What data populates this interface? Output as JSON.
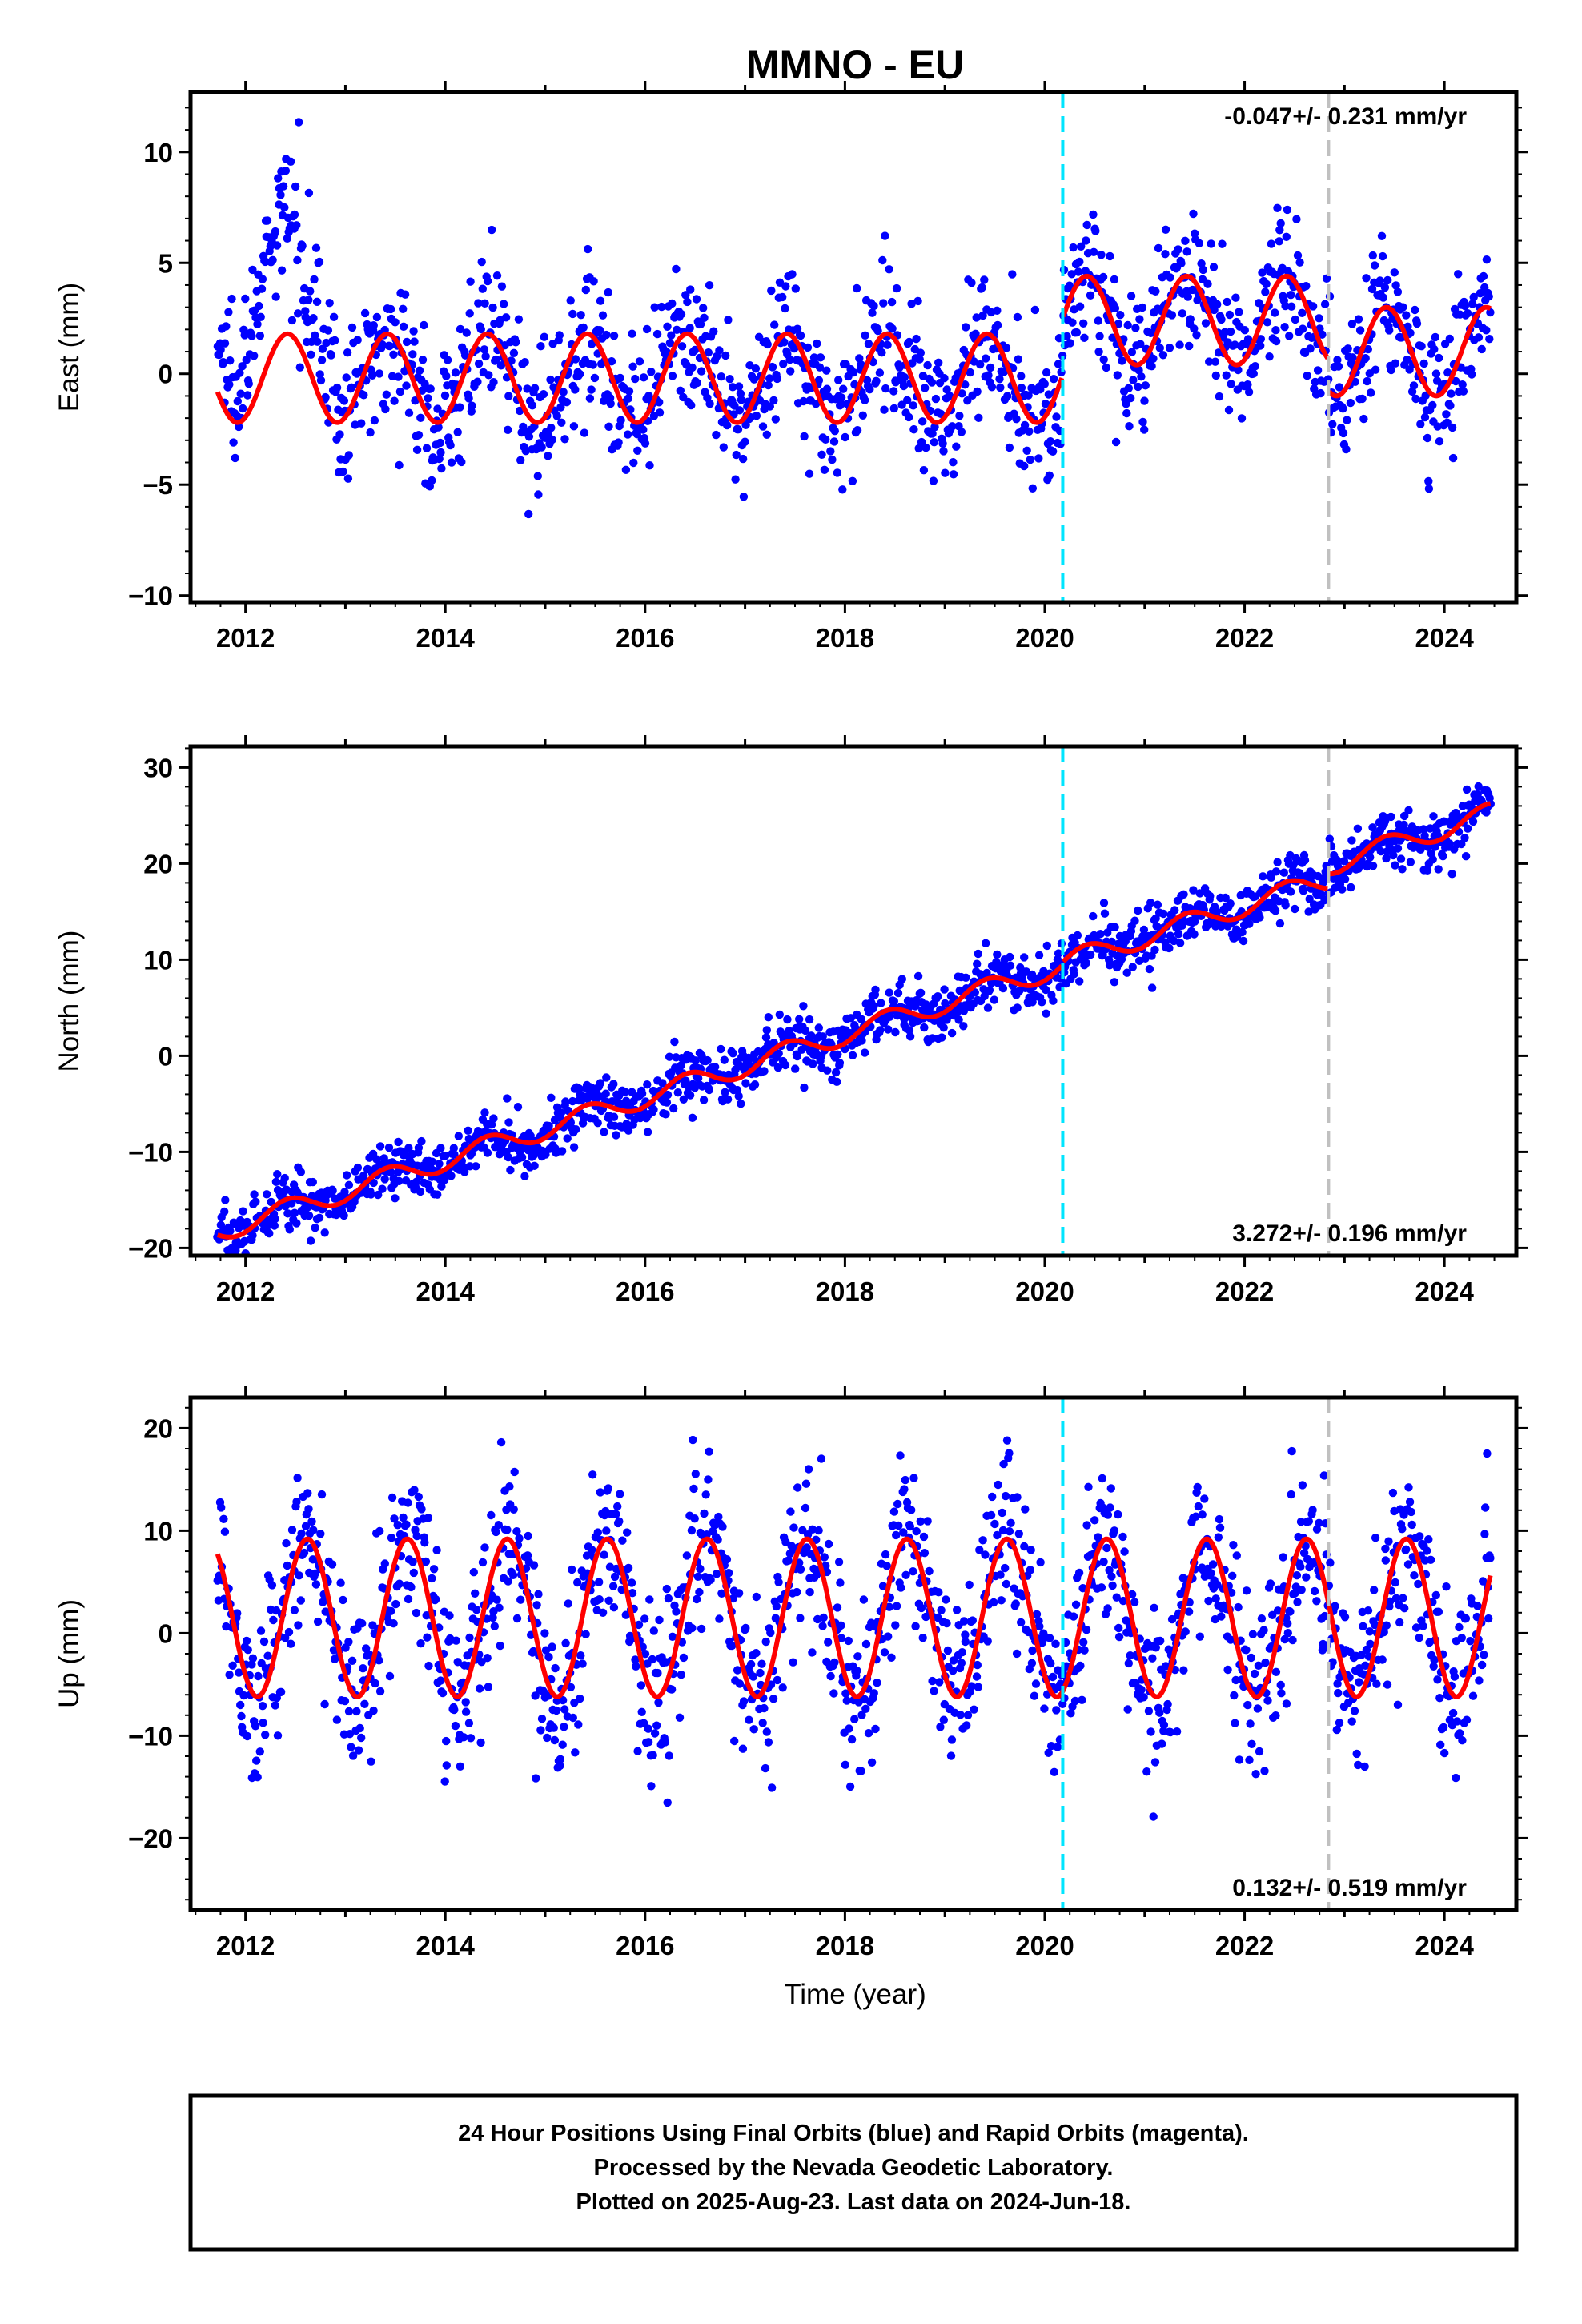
{
  "title": "MMNO - EU",
  "colors": {
    "data_points": "#0000ff",
    "model_line": "#ff0000",
    "marker_cyan": "#00e5ff",
    "marker_gray": "#c0c0c0"
  },
  "xlabel": "Time (year)",
  "footer": {
    "line1": "24 Hour Positions Using Final Orbits (blue) and Rapid Orbits (magenta).",
    "line2": "Processed by the Nevada Geodetic Laboratory.",
    "line3": "Plotted on 2025-Aug-23. Last data on 2024-Jun-18."
  },
  "chart_data": [
    {
      "type": "scatter",
      "component": "east",
      "ylabel": "East (mm)",
      "rate_label": "-0.047+/- 0.231 mm/yr",
      "rate_position": "top-right",
      "xlim": [
        2011.45,
        2024.72
      ],
      "ylim": [
        -10.3,
        12.7
      ],
      "xticks": [
        2012,
        2014,
        2016,
        2018,
        2020,
        2022,
        2024
      ],
      "yticks": [
        -10,
        -5,
        0,
        5,
        10
      ],
      "data_start": 2011.72,
      "data_end": 2024.46,
      "grid": false,
      "markers": [
        {
          "x": 2020.18,
          "style": "cyan-dashed"
        },
        {
          "x": 2022.84,
          "style": "gray-dashed"
        }
      ],
      "model_segments": [
        {
          "from": 2011.72,
          "to": 2020.18,
          "offset": -0.2,
          "trend": 0.0,
          "amplitude": 2.0
        },
        {
          "from": 2020.18,
          "to": 2022.84,
          "offset": 2.4,
          "trend": 0.0,
          "amplitude": 2.0
        },
        {
          "from": 2022.84,
          "to": 2024.46,
          "offset": 1.0,
          "trend": 0.0,
          "amplitude": 2.0
        }
      ],
      "model_anchor_points": [
        {
          "x": 2011.72,
          "y": -1.8
        },
        {
          "x": 2012.42,
          "y": 1.9
        },
        {
          "x": 2013.42,
          "y": 1.9
        },
        {
          "x": 2013.92,
          "y": -2.2
        },
        {
          "x": 2016.42,
          "y": 1.6
        },
        {
          "x": 2019.42,
          "y": 1.6
        },
        {
          "x": 2020.1,
          "y": -2.0
        },
        {
          "x": 2020.42,
          "y": 4.4
        },
        {
          "x": 2021.42,
          "y": 4.3
        },
        {
          "x": 2022.42,
          "y": 4.3
        },
        {
          "x": 2022.84,
          "y": -1.0
        },
        {
          "x": 2023.42,
          "y": 3.0
        },
        {
          "x": 2023.92,
          "y": -1.0
        },
        {
          "x": 2024.42,
          "y": 2.8
        }
      ],
      "scatter_sigma": 1.6
    },
    {
      "type": "scatter",
      "component": "north",
      "ylabel": "North (mm)",
      "rate_label": "3.272+/- 0.196 mm/yr",
      "rate_position": "bottom-right",
      "xlim": [
        2011.45,
        2024.72
      ],
      "ylim": [
        -20.8,
        32.2
      ],
      "xticks": [
        2012,
        2014,
        2016,
        2018,
        2020,
        2022,
        2024
      ],
      "yticks": [
        -20,
        -10,
        0,
        10,
        20,
        30
      ],
      "data_start": 2011.72,
      "data_end": 2024.46,
      "grid": false,
      "markers": [
        {
          "x": 2020.18,
          "style": "cyan-dashed"
        },
        {
          "x": 2022.84,
          "style": "gray-dashed"
        }
      ],
      "model_segments": [
        {
          "from": 2011.72,
          "to": 2020.18,
          "offset": -18.3,
          "trend": 3.272,
          "amplitude": 1.1
        },
        {
          "from": 2020.18,
          "to": 2022.84,
          "offset": -18.0,
          "trend": 3.272,
          "amplitude": 1.1
        },
        {
          "from": 2022.84,
          "to": 2024.46,
          "offset": -16.5,
          "trend": 3.272,
          "amplitude": 1.1
        }
      ],
      "model_anchor_points": [
        {
          "x": 2011.72,
          "y": -20.2
        },
        {
          "x": 2012.5,
          "y": -15.0
        },
        {
          "x": 2014.0,
          "y": -11.0
        },
        {
          "x": 2016.0,
          "y": -4.0
        },
        {
          "x": 2018.0,
          "y": 2.0
        },
        {
          "x": 2020.0,
          "y": 8.5
        },
        {
          "x": 2022.0,
          "y": 16.5
        },
        {
          "x": 2022.84,
          "y": 17.0
        },
        {
          "x": 2022.9,
          "y": 20.5
        },
        {
          "x": 2024.46,
          "y": 28.0
        }
      ],
      "scatter_sigma": 1.5
    },
    {
      "type": "scatter",
      "component": "up",
      "ylabel": "Up (mm)",
      "rate_label": "0.132+/- 0.519 mm/yr",
      "rate_position": "bottom-right",
      "xlim": [
        2011.45,
        2024.72
      ],
      "ylim": [
        -27.0,
        23.0
      ],
      "xticks": [
        2012,
        2014,
        2016,
        2018,
        2020,
        2022,
        2024
      ],
      "yticks": [
        -20,
        -10,
        0,
        10,
        20
      ],
      "data_start": 2011.72,
      "data_end": 2024.46,
      "grid": false,
      "markers": [
        {
          "x": 2020.18,
          "style": "cyan-dashed"
        },
        {
          "x": 2022.84,
          "style": "gray-dashed"
        }
      ],
      "model_segments": [
        {
          "from": 2011.72,
          "to": 2024.46,
          "offset": 1.5,
          "trend": 0.0,
          "amplitude": 7.7
        }
      ],
      "model_anchor_points": [
        {
          "x": 2011.72,
          "y": 6.5
        },
        {
          "x": 2012.1,
          "y": -6.8
        },
        {
          "x": 2012.62,
          "y": 8.8
        },
        {
          "x": 2013.1,
          "y": -6.5
        },
        {
          "x": 2017.62,
          "y": 9.5
        },
        {
          "x": 2020.1,
          "y": -6.0
        },
        {
          "x": 2023.62,
          "y": 10.0
        },
        {
          "x": 2024.1,
          "y": -5.5
        },
        {
          "x": 2024.46,
          "y": 5.0
        }
      ],
      "scatter_sigma": 4.2
    }
  ]
}
